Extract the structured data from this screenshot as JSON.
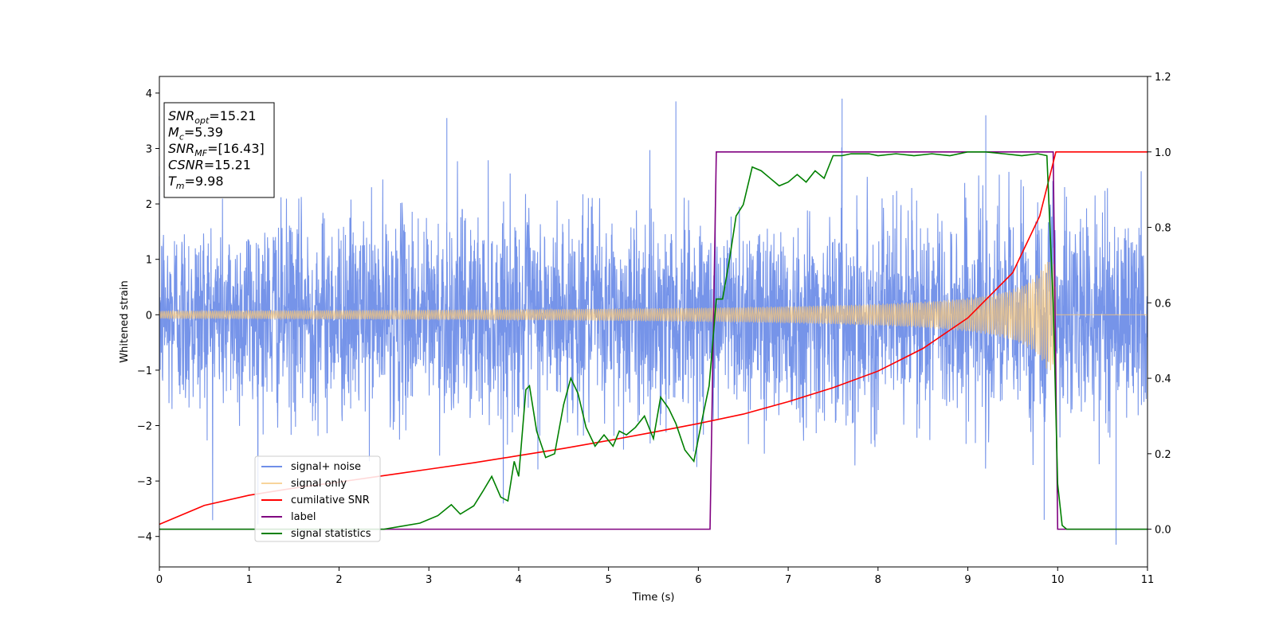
{
  "chart_data": {
    "type": "line",
    "xlabel": "Time (s)",
    "ylabel": "Whitened strain",
    "xlim": [
      0,
      11
    ],
    "ylim": [
      -4.55,
      4.3
    ],
    "y2lim": [
      -0.1,
      1.2
    ],
    "x_ticks": [
      0,
      1,
      2,
      3,
      4,
      5,
      6,
      7,
      8,
      9,
      10,
      11
    ],
    "y_ticks": [
      4,
      3,
      2,
      1,
      0,
      -1,
      -2,
      -3,
      -4
    ],
    "y2_ticks": [
      1.2,
      1.0,
      0.8,
      0.6,
      0.4,
      0.2,
      0.0
    ],
    "x_tick_labels": [
      "0",
      "1",
      "2",
      "3",
      "4",
      "5",
      "6",
      "7",
      "8",
      "9",
      "10",
      "11"
    ],
    "y_tick_labels": [
      "4",
      "3",
      "2",
      "1",
      "0",
      "−1",
      "−2",
      "−3",
      "−4"
    ],
    "y2_tick_labels": [
      "1.2",
      "1.0",
      "0.8",
      "0.6",
      "0.4",
      "0.2",
      "0.0"
    ],
    "grid": false,
    "legend_position": "lower-left",
    "series": [
      {
        "name": "signal+ noise",
        "axis": "left",
        "color": "#6f8ee8",
        "description_values": {
          "noise_std": 0.9,
          "max_peaks": [
            3.9,
            3.85,
            3.65
          ],
          "min_peak": -4.15
        }
      },
      {
        "name": "signal only",
        "axis": "left",
        "color": "#f5c57a",
        "description_values": {
          "amplitude_start": 0.07,
          "amplitude_end": 1.0,
          "merger_time": 9.98
        }
      },
      {
        "name": "cumilative SNR",
        "axis": "right",
        "color": "#ff0000",
        "x": [
          0,
          0.5,
          1,
          1.5,
          2,
          2.5,
          3,
          3.5,
          4,
          4.5,
          5,
          5.5,
          6,
          6.5,
          7,
          7.5,
          8,
          8.5,
          9,
          9.5,
          9.8,
          9.98,
          10,
          11
        ],
        "values": [
          0.013,
          0.063,
          0.09,
          0.109,
          0.125,
          0.142,
          0.159,
          0.176,
          0.195,
          0.214,
          0.235,
          0.257,
          0.28,
          0.305,
          0.338,
          0.375,
          0.419,
          0.479,
          0.56,
          0.68,
          0.83,
          1.0,
          1.0,
          1.0
        ]
      },
      {
        "name": "label",
        "axis": "right",
        "color": "#800080",
        "x": [
          0,
          6.13,
          6.2,
          9.95,
          10.0,
          11
        ],
        "values": [
          0,
          0,
          1,
          1,
          0,
          0
        ]
      },
      {
        "name": "signal statistics",
        "axis": "right",
        "color": "#008000",
        "x": [
          0,
          0.5,
          1,
          1.5,
          2,
          2.5,
          2.7,
          2.9,
          3.1,
          3.25,
          3.35,
          3.5,
          3.6,
          3.7,
          3.8,
          3.88,
          3.95,
          4.0,
          4.08,
          4.12,
          4.2,
          4.3,
          4.4,
          4.5,
          4.58,
          4.66,
          4.75,
          4.85,
          4.95,
          5.05,
          5.12,
          5.2,
          5.3,
          5.4,
          5.5,
          5.58,
          5.67,
          5.75,
          5.85,
          5.95,
          6.05,
          6.12,
          6.2,
          6.27,
          6.35,
          6.42,
          6.5,
          6.6,
          6.7,
          6.8,
          6.9,
          7.0,
          7.1,
          7.2,
          7.3,
          7.4,
          7.5,
          7.6,
          7.7,
          7.8,
          7.9,
          8.0,
          8.2,
          8.4,
          8.6,
          8.8,
          9.0,
          9.2,
          9.4,
          9.6,
          9.78,
          9.88,
          9.95,
          10.0,
          10.05,
          10.1,
          10.2,
          11
        ],
        "values": [
          0.0,
          0.0,
          0.0,
          0.0,
          0.0,
          0.0,
          0.008,
          0.016,
          0.036,
          0.065,
          0.04,
          0.062,
          0.1,
          0.14,
          0.085,
          0.075,
          0.18,
          0.14,
          0.37,
          0.38,
          0.26,
          0.19,
          0.2,
          0.33,
          0.4,
          0.36,
          0.27,
          0.22,
          0.25,
          0.22,
          0.26,
          0.25,
          0.27,
          0.3,
          0.24,
          0.35,
          0.32,
          0.28,
          0.21,
          0.18,
          0.3,
          0.38,
          0.61,
          0.61,
          0.72,
          0.83,
          0.86,
          0.96,
          0.95,
          0.93,
          0.91,
          0.92,
          0.94,
          0.92,
          0.95,
          0.93,
          0.99,
          0.99,
          0.995,
          0.995,
          0.995,
          0.99,
          0.995,
          0.99,
          0.995,
          0.99,
          1.0,
          1.0,
          0.995,
          0.99,
          0.995,
          0.99,
          0.6,
          0.12,
          0.01,
          0.0,
          0.0,
          0.0
        ]
      }
    ],
    "annotation": {
      "lines": [
        {
          "name": "SNR",
          "sub": "opt",
          "value": "=15.21"
        },
        {
          "name": "M",
          "sub": "c",
          "value": "=5.39"
        },
        {
          "name": "SNR",
          "sub": "MF",
          "value": "=[16.43]"
        },
        {
          "name": "CSNR",
          "sub": "",
          "value": "=15.21"
        },
        {
          "name": "T",
          "sub": "m",
          "value": "=9.98"
        }
      ]
    }
  }
}
